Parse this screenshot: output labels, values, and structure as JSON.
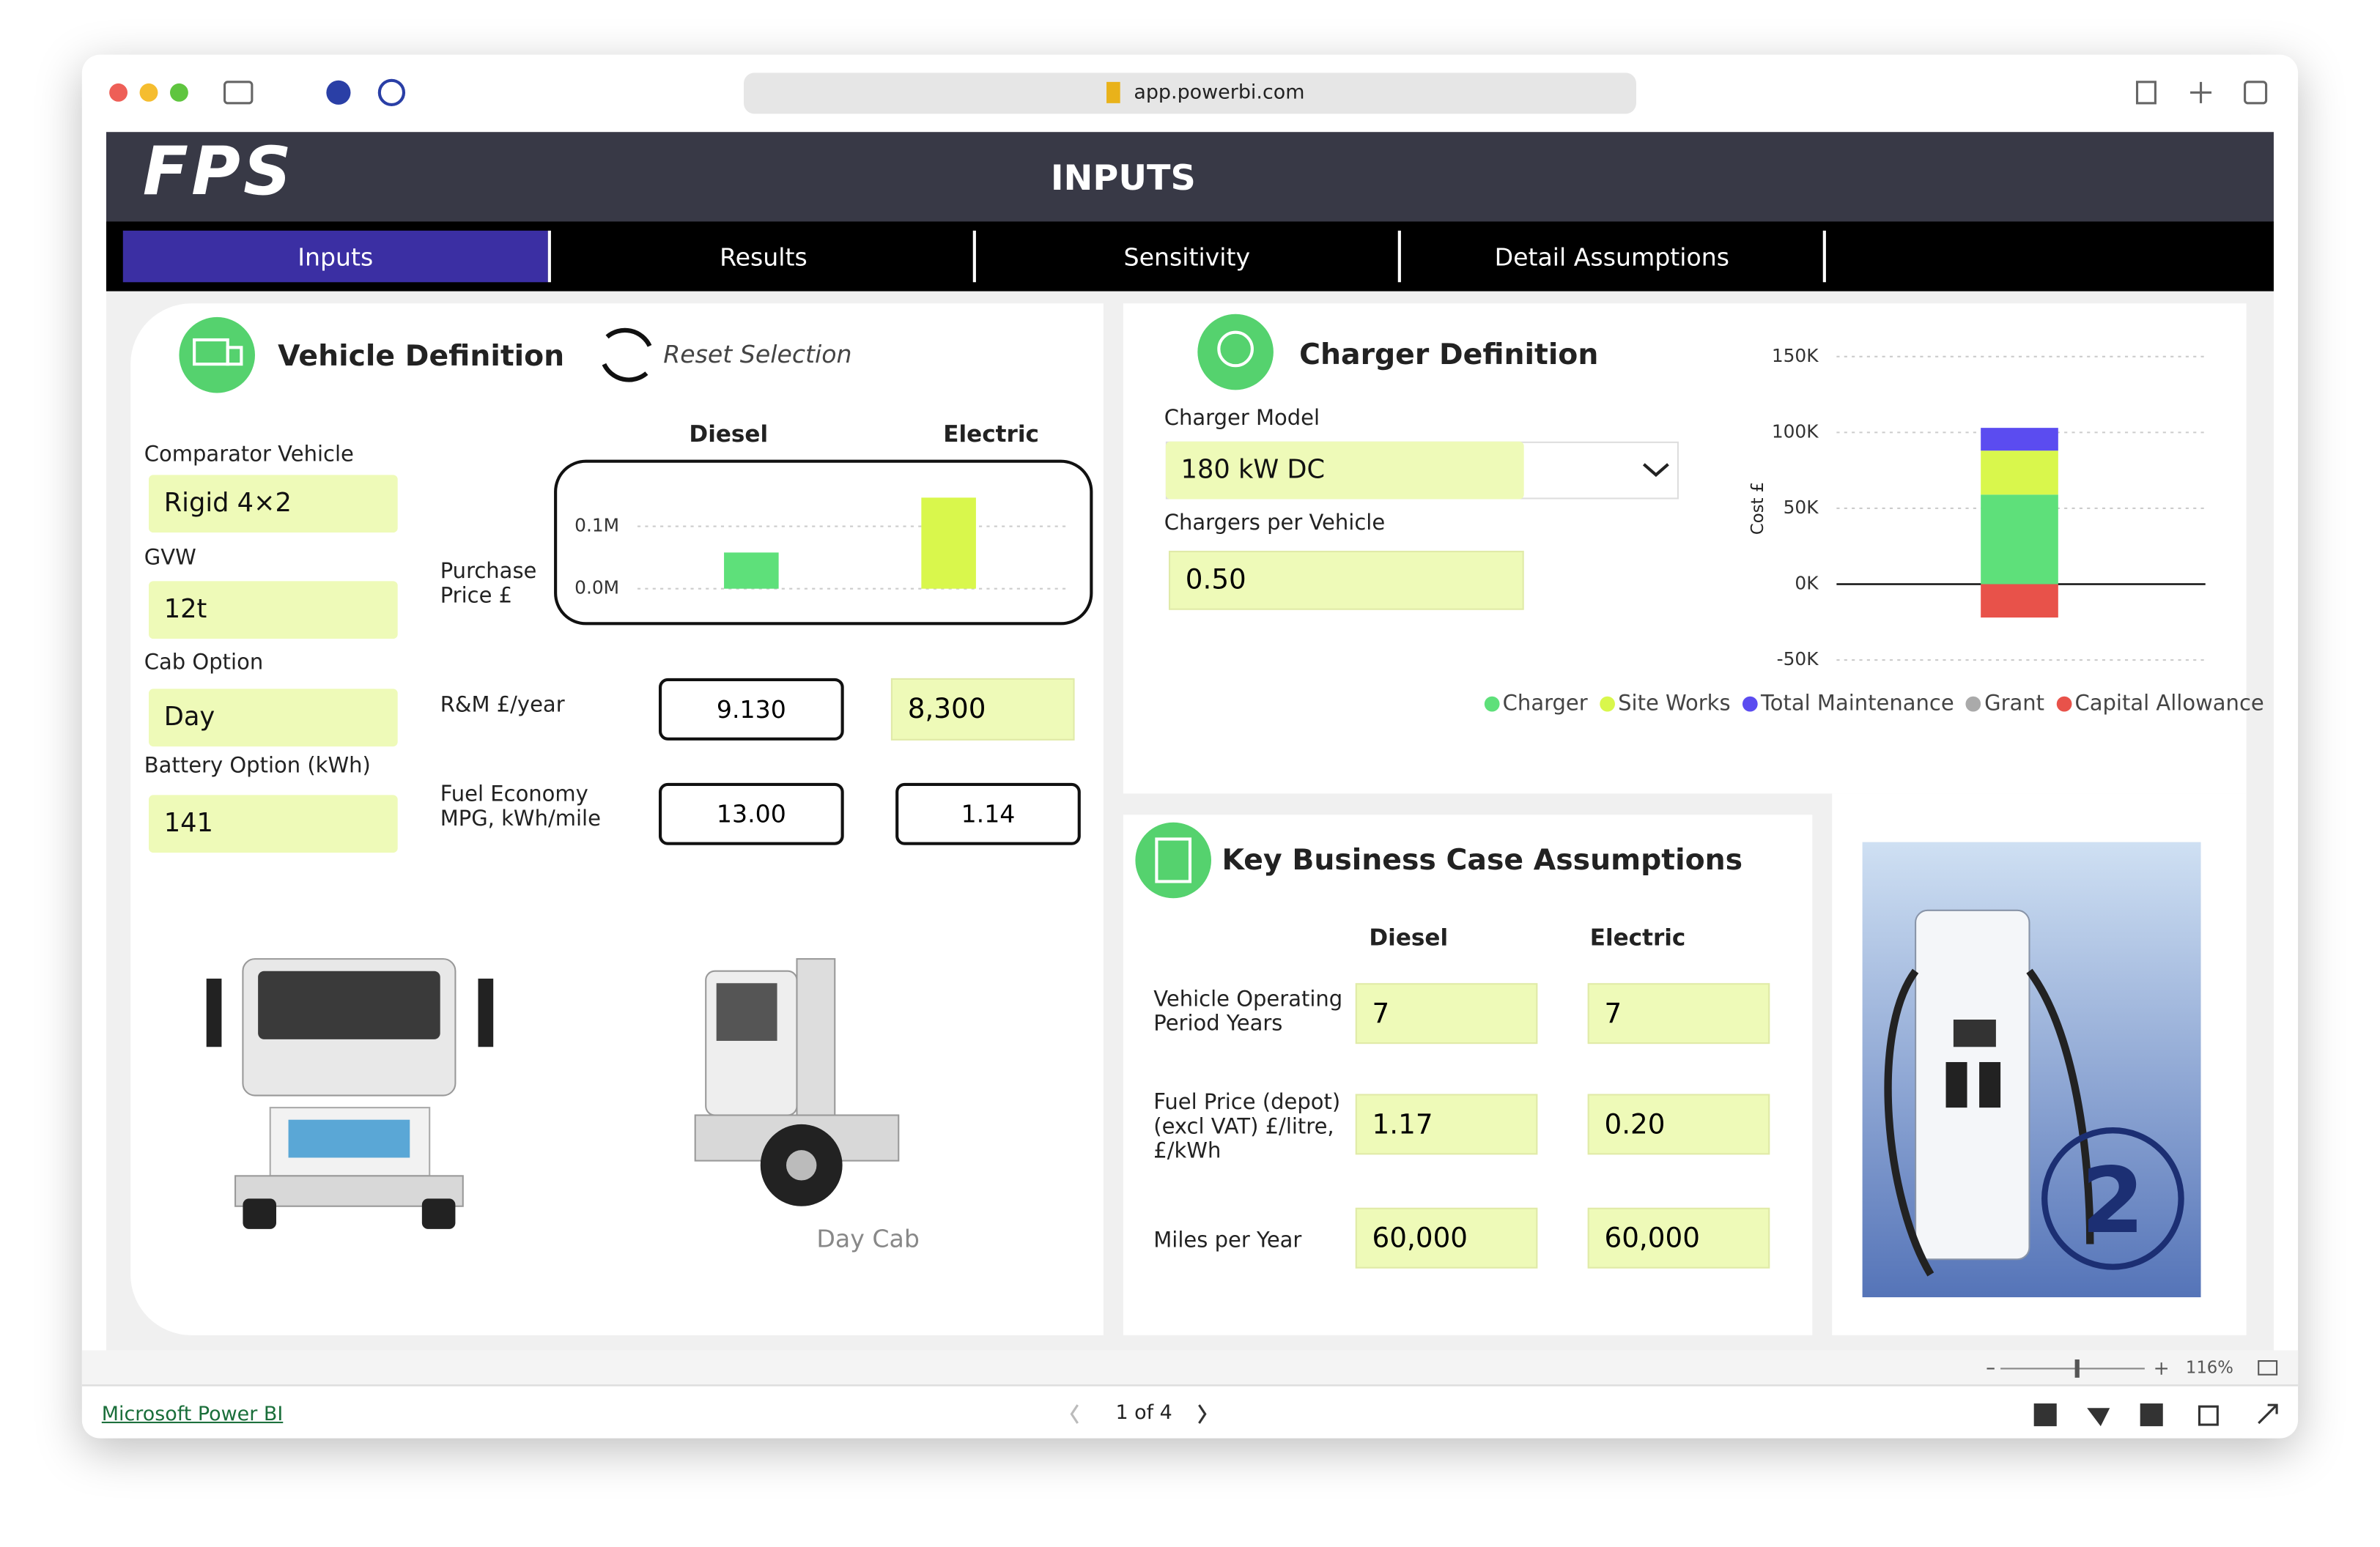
{
  "browser": {
    "url": "app.powerbi.com"
  },
  "header": {
    "logo": "FPS",
    "title": "INPUTS"
  },
  "tabs": [
    "Inputs",
    "Results",
    "Sensitivity",
    "Detail Assumptions"
  ],
  "vehicle": {
    "title": "Vehicle Definition",
    "reset": "Reset Selection",
    "fields": [
      {
        "label": "Comparator Vehicle",
        "value": "Rigid 4×2"
      },
      {
        "label": "GVW",
        "value": "12t"
      },
      {
        "label": "Cab Option",
        "value": "Day"
      },
      {
        "label": "Battery Option (kWh)",
        "value": "141"
      }
    ],
    "purchase_label": "Purchase Price £",
    "purchase_chart": {
      "type": "bar",
      "categories": [
        "Diesel",
        "Electric"
      ],
      "values": [
        58000,
        146000
      ],
      "colors": [
        "#5ee07a",
        "#d9f74c"
      ],
      "ylim": [
        0,
        180000
      ],
      "yticks": [
        {
          "value": 0,
          "label": "0.0M"
        },
        {
          "value": 100000,
          "label": "0.1M"
        }
      ],
      "grid": true
    },
    "rows": [
      {
        "label": "R&M £/year",
        "diesel": "9.130",
        "electric": "8,300"
      },
      {
        "label": "Fuel Economy MPG, kWh/mile",
        "diesel": "13.00",
        "electric": "1.14"
      }
    ],
    "image_caption": "Day Cab"
  },
  "charger": {
    "title": "Charger Definition",
    "model_label": "Charger Model",
    "model": "180 kW DC",
    "per_vehicle_label": "Chargers per Vehicle",
    "per_vehicle": "0.50",
    "cost_chart": {
      "type": "stacked-bar",
      "y_label": "Cost £",
      "ylim": [
        -50000,
        150000
      ],
      "yticks": [
        {
          "value": -50000,
          "label": "-50K"
        },
        {
          "value": 0,
          "label": "0K"
        },
        {
          "value": 50000,
          "label": "50K"
        },
        {
          "value": 100000,
          "label": "100K"
        },
        {
          "value": 150000,
          "label": "150K"
        }
      ],
      "grid": true,
      "series": [
        {
          "name": "Charger",
          "color": "#5ee07a",
          "values": [
            59000
          ]
        },
        {
          "name": "Site Works",
          "color": "#d9f74c",
          "values": [
            29000
          ]
        },
        {
          "name": "Total Maintenance",
          "color": "#5b4cf0",
          "values": [
            15000
          ]
        },
        {
          "name": "Grant",
          "color": "#aaaaaa",
          "values": [
            0
          ]
        },
        {
          "name": "Capital Allowance",
          "color": "#e8524a",
          "values": [
            -22000
          ]
        }
      ]
    }
  },
  "assumptions": {
    "title": "Key Business Case Assumptions",
    "headers": [
      "Diesel",
      "Electric"
    ],
    "rows": [
      {
        "label": "Vehicle Operating Period Years",
        "diesel": "7",
        "electric": "7"
      },
      {
        "label": "Fuel Price (depot) (excl VAT) £/litre, £/kWh",
        "diesel": "1.17",
        "electric": "0.20"
      },
      {
        "label": "Miles per Year",
        "diesel": "60,000",
        "electric": "60,000"
      }
    ]
  },
  "footer": {
    "zoom": "116%",
    "brand": "Microsoft Power BI",
    "page": "1 of 4"
  }
}
